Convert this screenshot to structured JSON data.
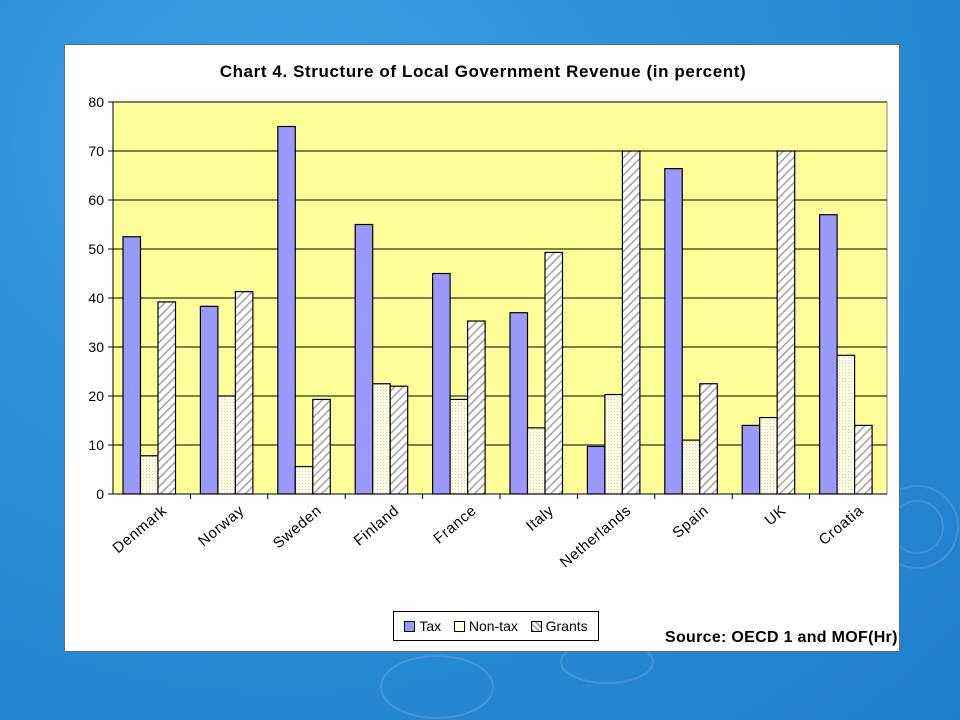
{
  "chart_data": {
    "type": "bar",
    "title": "Chart 4. Structure of Local Government Revenue (in percent)",
    "categories": [
      "Denmark",
      "Norway",
      "Sweden",
      "Finland",
      "France",
      "Italy",
      "Netherlands",
      "Spain",
      "UK",
      "Croatia"
    ],
    "series": [
      {
        "name": "Tax",
        "color": "#9999ff",
        "values": [
          52.5,
          38.3,
          75,
          55,
          45,
          37,
          9.7,
          66.4,
          14,
          57
        ]
      },
      {
        "name": "Non-tax",
        "color": "#ffffcc",
        "values": [
          7.8,
          20,
          5.6,
          22.5,
          19.3,
          13.5,
          20.3,
          11,
          15.6,
          28.3
        ]
      },
      {
        "name": "Grants",
        "color": "#c0c0c0",
        "values": [
          39.2,
          41.3,
          19.3,
          22,
          35.3,
          49.3,
          70,
          22.5,
          70,
          14
        ]
      }
    ],
    "ylim": [
      0,
      80
    ],
    "yticks": [
      0,
      10,
      20,
      30,
      40,
      50,
      60,
      70,
      80
    ],
    "grid": true,
    "legend": "bottom-center",
    "plot_background": "#ffff99",
    "annotation": "Source: OECD 1 and MOF(Hr)"
  }
}
